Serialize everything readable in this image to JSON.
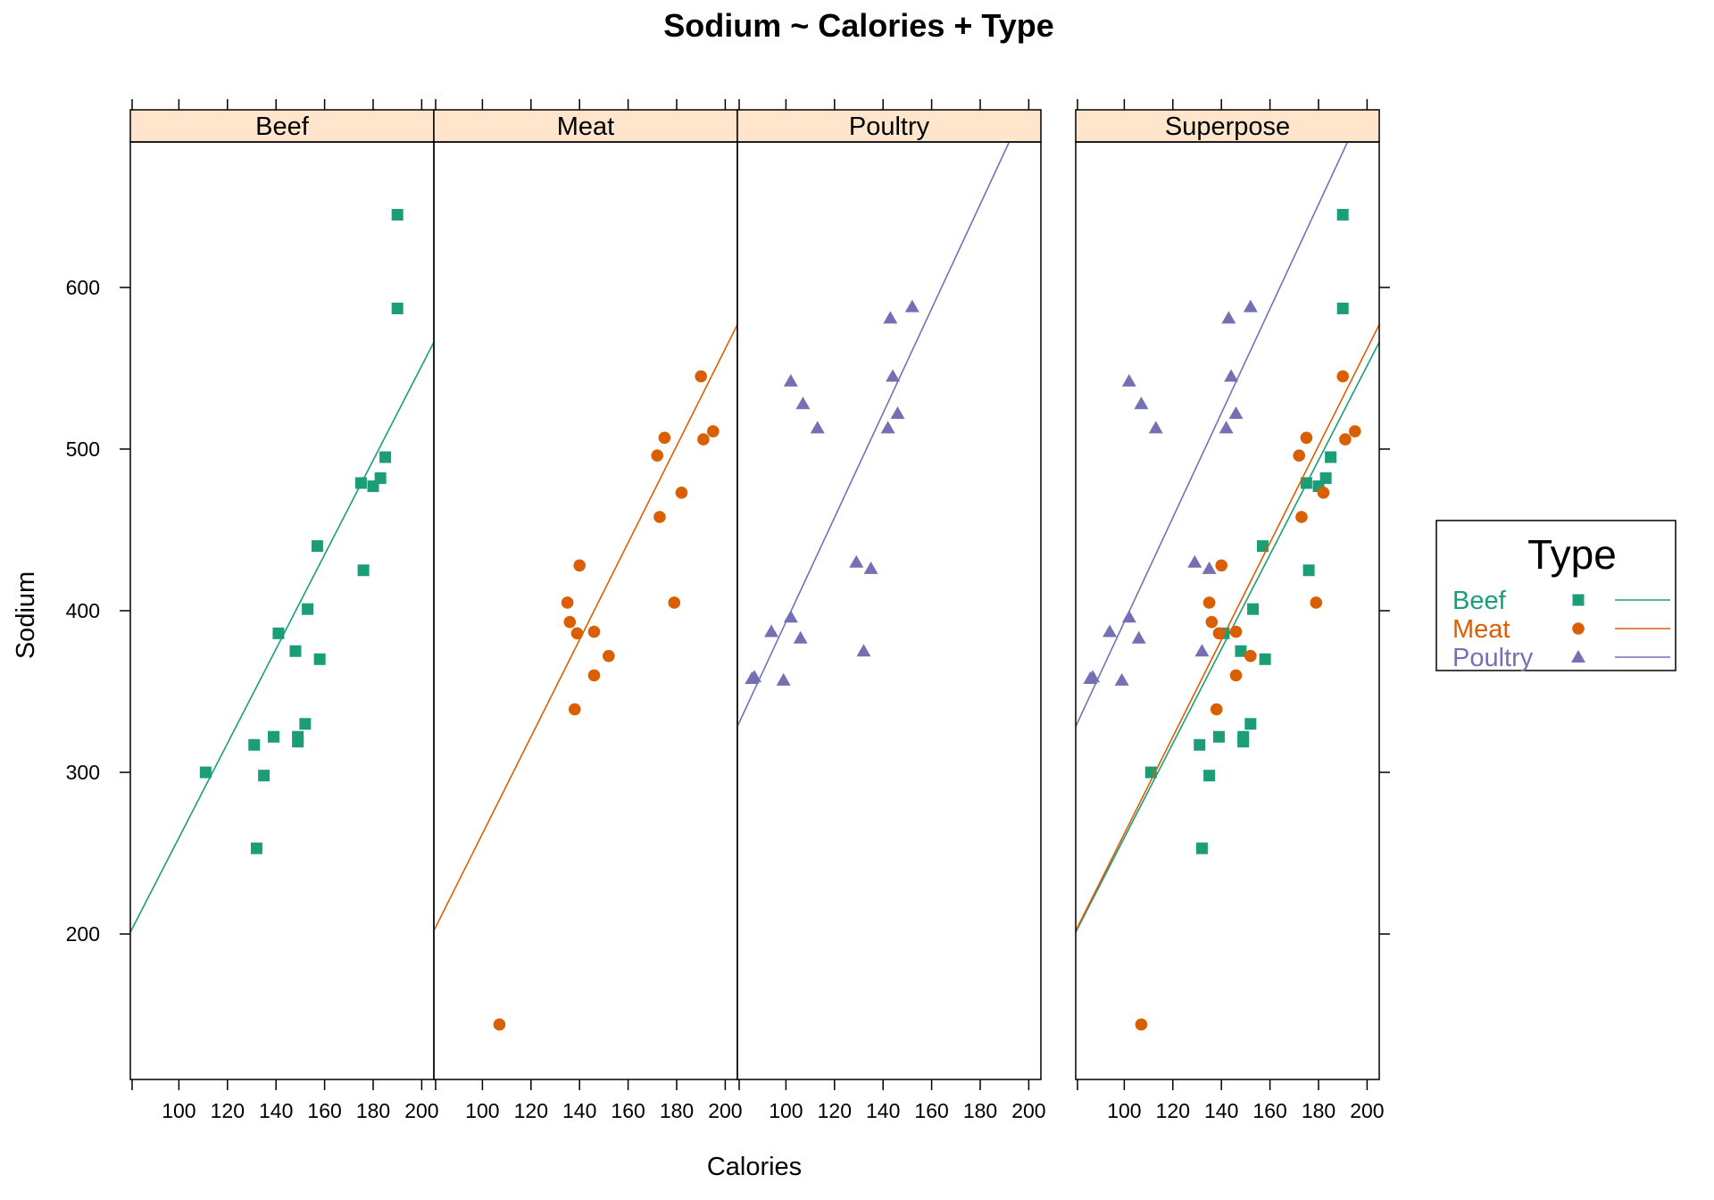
{
  "chart_data": {
    "type": "scatter",
    "title": "Sodium ~ Calories + Type",
    "xlabel": "Calories",
    "ylabel": "Sodium",
    "xlim": [
      80,
      205
    ],
    "ylim": [
      110,
      690
    ],
    "xticks": [
      100,
      120,
      140,
      160,
      180,
      200
    ],
    "yticks": [
      200,
      300,
      400,
      500,
      600
    ],
    "x_tick_labels": [
      "100",
      "120",
      "140",
      "160",
      "180",
      "200"
    ],
    "y_tick_labels": [
      "200",
      "300",
      "400",
      "500",
      "600"
    ],
    "panels": [
      "Beef",
      "Meat",
      "Poultry",
      "Superpose"
    ],
    "legend": {
      "title": "Type",
      "placement": "right"
    },
    "series": [
      {
        "name": "Beef",
        "color": "#1b9e77",
        "marker": "square",
        "fit": {
          "intercept": -32.5,
          "slope": 2.92
        },
        "points": [
          [
            111,
            300
          ],
          [
            131,
            317
          ],
          [
            132,
            253
          ],
          [
            135,
            298
          ],
          [
            139,
            322
          ],
          [
            141,
            386
          ],
          [
            148,
            375
          ],
          [
            149,
            322
          ],
          [
            149,
            319
          ],
          [
            152,
            330
          ],
          [
            153,
            401
          ],
          [
            157,
            440
          ],
          [
            158,
            370
          ],
          [
            175,
            479
          ],
          [
            176,
            425
          ],
          [
            180,
            477
          ],
          [
            183,
            482
          ],
          [
            185,
            495
          ],
          [
            190,
            587
          ],
          [
            190,
            645
          ]
        ]
      },
      {
        "name": "Meat",
        "color": "#d95f02",
        "marker": "circle",
        "fit": {
          "intercept": -38.0,
          "slope": 3.0
        },
        "points": [
          [
            107,
            144
          ],
          [
            135,
            405
          ],
          [
            136,
            393
          ],
          [
            138,
            339
          ],
          [
            139,
            386
          ],
          [
            140,
            428
          ],
          [
            146,
            387
          ],
          [
            146,
            360
          ],
          [
            152,
            372
          ],
          [
            172,
            496
          ],
          [
            173,
            458
          ],
          [
            175,
            507
          ],
          [
            179,
            405
          ],
          [
            182,
            473
          ],
          [
            190,
            545
          ],
          [
            191,
            506
          ],
          [
            195,
            511
          ]
        ]
      },
      {
        "name": "Poultry",
        "color": "#7570b3",
        "marker": "triangle",
        "fit": {
          "intercept": 70.0,
          "slope": 3.23
        },
        "points": [
          [
            86,
            358
          ],
          [
            87,
            359
          ],
          [
            94,
            387
          ],
          [
            99,
            357
          ],
          [
            102,
            396
          ],
          [
            102,
            542
          ],
          [
            106,
            383
          ],
          [
            107,
            528
          ],
          [
            113,
            513
          ],
          [
            129,
            430
          ],
          [
            132,
            375
          ],
          [
            135,
            426
          ],
          [
            142,
            513
          ],
          [
            143,
            581
          ],
          [
            144,
            545
          ],
          [
            146,
            522
          ],
          [
            152,
            588
          ]
        ]
      }
    ]
  }
}
